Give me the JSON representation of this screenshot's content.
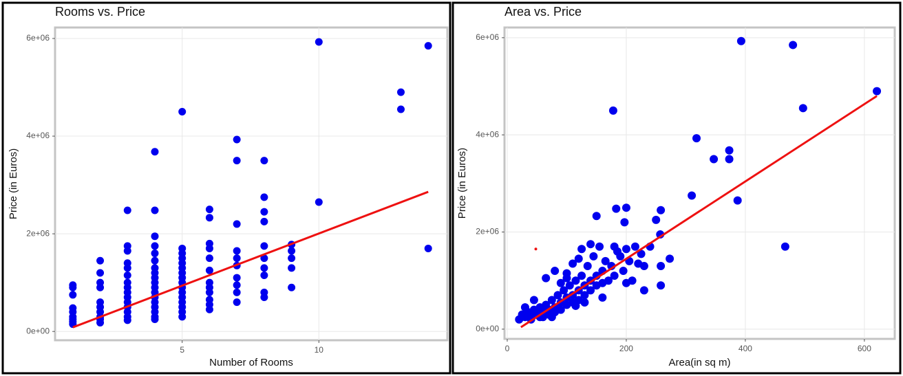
{
  "chart_data": [
    {
      "type": "scatter",
      "title": "Rooms vs. Price",
      "x_label": "Number of Rooms",
      "y_label": "Price (in Euros)",
      "xlim": [
        0.35,
        14.7
      ],
      "ylim": [
        -180000,
        6225000
      ],
      "xticks": [
        5,
        10
      ],
      "yticks": [
        {
          "value": 0,
          "label": "0e+00"
        },
        {
          "value": 2000000,
          "label": "2e+06"
        },
        {
          "value": 4000000,
          "label": "4e+06"
        },
        {
          "value": 6000000,
          "label": "6e+06"
        }
      ],
      "grid": true,
      "points": {
        "color": "#0000ee",
        "x": [
          1,
          1,
          1,
          1,
          1,
          1,
          1,
          1,
          1,
          2,
          2,
          2,
          2,
          2,
          2,
          2,
          2,
          2,
          2,
          3,
          3,
          3,
          3,
          3,
          3,
          3,
          3,
          3,
          3,
          3,
          3,
          3,
          3,
          3,
          4,
          4,
          4,
          4,
          4,
          4,
          4,
          4,
          4,
          4,
          4,
          4,
          4,
          4,
          4,
          4,
          4,
          4,
          5,
          5,
          5,
          5,
          5,
          5,
          5,
          5,
          5,
          5,
          5,
          5,
          5,
          5,
          5,
          5,
          6,
          6,
          6,
          6,
          6,
          6,
          6,
          6,
          6,
          6,
          6,
          6,
          7,
          7,
          7,
          7,
          7,
          7,
          7,
          7,
          7,
          7,
          8,
          8,
          8,
          8,
          8,
          8,
          8,
          8,
          8,
          8,
          9,
          9,
          9,
          9,
          9,
          10,
          10,
          13,
          13,
          14,
          14
        ],
        "values": [
          950000,
          900000,
          750000,
          480000,
          400000,
          300000,
          250000,
          200000,
          150000,
          1450000,
          1200000,
          1000000,
          900000,
          600000,
          500000,
          400000,
          300000,
          250000,
          180000,
          2480000,
          1750000,
          1650000,
          1400000,
          1300000,
          1150000,
          1000000,
          900000,
          800000,
          700000,
          600000,
          500000,
          400000,
          300000,
          230000,
          3680000,
          2480000,
          1950000,
          1750000,
          1600000,
          1450000,
          1300000,
          1200000,
          1100000,
          1000000,
          900000,
          800000,
          700000,
          600000,
          500000,
          400000,
          300000,
          250000,
          4500000,
          1700000,
          1600000,
          1500000,
          1400000,
          1300000,
          1200000,
          1100000,
          1000000,
          900000,
          800000,
          700000,
          600000,
          500000,
          400000,
          300000,
          2500000,
          2330000,
          1800000,
          1700000,
          1500000,
          1250000,
          1000000,
          900000,
          800000,
          650000,
          550000,
          450000,
          3930000,
          3500000,
          2200000,
          1650000,
          1500000,
          1350000,
          1100000,
          950000,
          800000,
          600000,
          3500000,
          2750000,
          2450000,
          2250000,
          1750000,
          1500000,
          1300000,
          1150000,
          800000,
          700000,
          1780000,
          1650000,
          1500000,
          1300000,
          900000,
          5930000,
          2650000,
          4900000,
          4550000,
          5850000,
          1700000
        ]
      },
      "fit_line": {
        "color": "#ee1111",
        "x": [
          1,
          14
        ],
        "values": [
          85000,
          2860000
        ]
      }
    },
    {
      "type": "scatter",
      "title": "Area vs. Price",
      "x_label": "Area(in sq m)",
      "y_label": "Price (in Euros)",
      "xlim": [
        -4.6,
        651
      ],
      "ylim": [
        -200000,
        6210000
      ],
      "xticks": [
        0,
        200,
        400,
        600
      ],
      "yticks": [
        {
          "value": 0,
          "label": "0e+00"
        },
        {
          "value": 2000000,
          "label": "2e+06"
        },
        {
          "value": 4000000,
          "label": "4e+06"
        },
        {
          "value": 6000000,
          "label": "6e+06"
        }
      ],
      "grid": true,
      "points": {
        "color": "#0000ee",
        "x": [
          393,
          480,
          621,
          497,
          178,
          318,
          373,
          347,
          373,
          310,
          387,
          467,
          200,
          183,
          258,
          150,
          250,
          197,
          257,
          240,
          273,
          258,
          230,
          258,
          230,
          20,
          25,
          30,
          35,
          40,
          45,
          50,
          55,
          60,
          60,
          65,
          70,
          70,
          75,
          80,
          80,
          85,
          90,
          90,
          95,
          100,
          100,
          105,
          110,
          110,
          115,
          120,
          120,
          125,
          130,
          130,
          135,
          140,
          140,
          145,
          150,
          150,
          155,
          160,
          160,
          165,
          170,
          175,
          180,
          185,
          190,
          195,
          200,
          205,
          210,
          215,
          220,
          225,
          65,
          80,
          100,
          110,
          120,
          125,
          140,
          45,
          30,
          100,
          90,
          160,
          130,
          115,
          55,
          40,
          75,
          200,
          180
        ],
        "values": [
          5930000,
          5850000,
          4900000,
          4550000,
          4500000,
          3930000,
          3680000,
          3500000,
          3500000,
          2750000,
          2650000,
          1700000,
          2500000,
          2480000,
          2450000,
          2330000,
          2250000,
          2200000,
          1950000,
          1700000,
          1450000,
          1300000,
          1300000,
          900000,
          800000,
          200000,
          300000,
          250000,
          350000,
          200000,
          400000,
          300000,
          450000,
          350000,
          250000,
          500000,
          400000,
          300000,
          600000,
          450000,
          350000,
          700000,
          550000,
          400000,
          800000,
          650000,
          500000,
          900000,
          700000,
          550000,
          1000000,
          800000,
          600000,
          1100000,
          900000,
          700000,
          1300000,
          1000000,
          800000,
          1500000,
          1100000,
          900000,
          1700000,
          1200000,
          950000,
          1400000,
          1000000,
          1300000,
          1100000,
          1600000,
          1500000,
          1200000,
          1650000,
          1400000,
          1000000,
          1700000,
          1350000,
          1550000,
          1050000,
          1200000,
          1150000,
          1350000,
          1450000,
          1650000,
          1750000,
          600000,
          450000,
          1050000,
          950000,
          650000,
          550000,
          480000,
          250000,
          300000,
          250000,
          950000,
          1700000
        ]
      },
      "extra_points": {
        "color": "#ee1111",
        "x": [
          48
        ],
        "values": [
          1650000
        ]
      },
      "fit_line": {
        "color": "#ee1111",
        "x": [
          23,
          621
        ],
        "values": [
          40000,
          4800000
        ]
      }
    }
  ]
}
